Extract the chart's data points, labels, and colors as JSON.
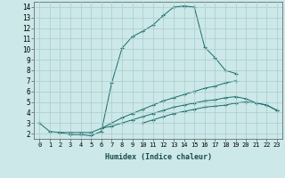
{
  "title": "",
  "xlabel": "Humidex (Indice chaleur)",
  "xlim": [
    -0.5,
    23.5
  ],
  "ylim": [
    1.5,
    14.5
  ],
  "xticks": [
    0,
    1,
    2,
    3,
    4,
    5,
    6,
    7,
    8,
    9,
    10,
    11,
    12,
    13,
    14,
    15,
    16,
    17,
    18,
    19,
    20,
    21,
    22,
    23
  ],
  "yticks": [
    2,
    3,
    4,
    5,
    6,
    7,
    8,
    9,
    10,
    11,
    12,
    13,
    14
  ],
  "background_color": "#cce8e8",
  "grid_color": "#aacccc",
  "line_color": "#1a6b6b",
  "line1_x": [
    0,
    1,
    2,
    3,
    4,
    5,
    6,
    7,
    8,
    9,
    10,
    11,
    12,
    13,
    14,
    15,
    16,
    17,
    18,
    19
  ],
  "line1_y": [
    3.0,
    2.2,
    2.1,
    1.9,
    1.9,
    1.8,
    2.2,
    6.8,
    10.1,
    11.2,
    11.7,
    12.3,
    13.2,
    14.0,
    14.1,
    14.0,
    10.2,
    9.2,
    8.0,
    7.7
  ],
  "line2_x": [
    2,
    3,
    4,
    5,
    6,
    7,
    8,
    9,
    10,
    11,
    12,
    13,
    14,
    15,
    16,
    17,
    18,
    19
  ],
  "line2_y": [
    2.1,
    2.1,
    2.1,
    2.1,
    2.5,
    3.0,
    3.5,
    3.9,
    4.3,
    4.7,
    5.1,
    5.4,
    5.7,
    6.0,
    6.3,
    6.5,
    6.8,
    7.0
  ],
  "line3_x": [
    6,
    7,
    8,
    9,
    10,
    11,
    12,
    13,
    14,
    15,
    16,
    17,
    18,
    19,
    20,
    21,
    22,
    23
  ],
  "line3_y": [
    2.5,
    2.7,
    3.0,
    3.3,
    3.6,
    3.9,
    4.2,
    4.5,
    4.7,
    4.9,
    5.1,
    5.2,
    5.4,
    5.5,
    5.3,
    4.9,
    4.7,
    4.2
  ],
  "line4_x": [
    10,
    11,
    12,
    13,
    14,
    15,
    16,
    17,
    18,
    19,
    20,
    21,
    22,
    23
  ],
  "line4_y": [
    3.0,
    3.3,
    3.6,
    3.9,
    4.1,
    4.3,
    4.5,
    4.6,
    4.7,
    4.9,
    5.0,
    4.9,
    4.7,
    4.2
  ]
}
